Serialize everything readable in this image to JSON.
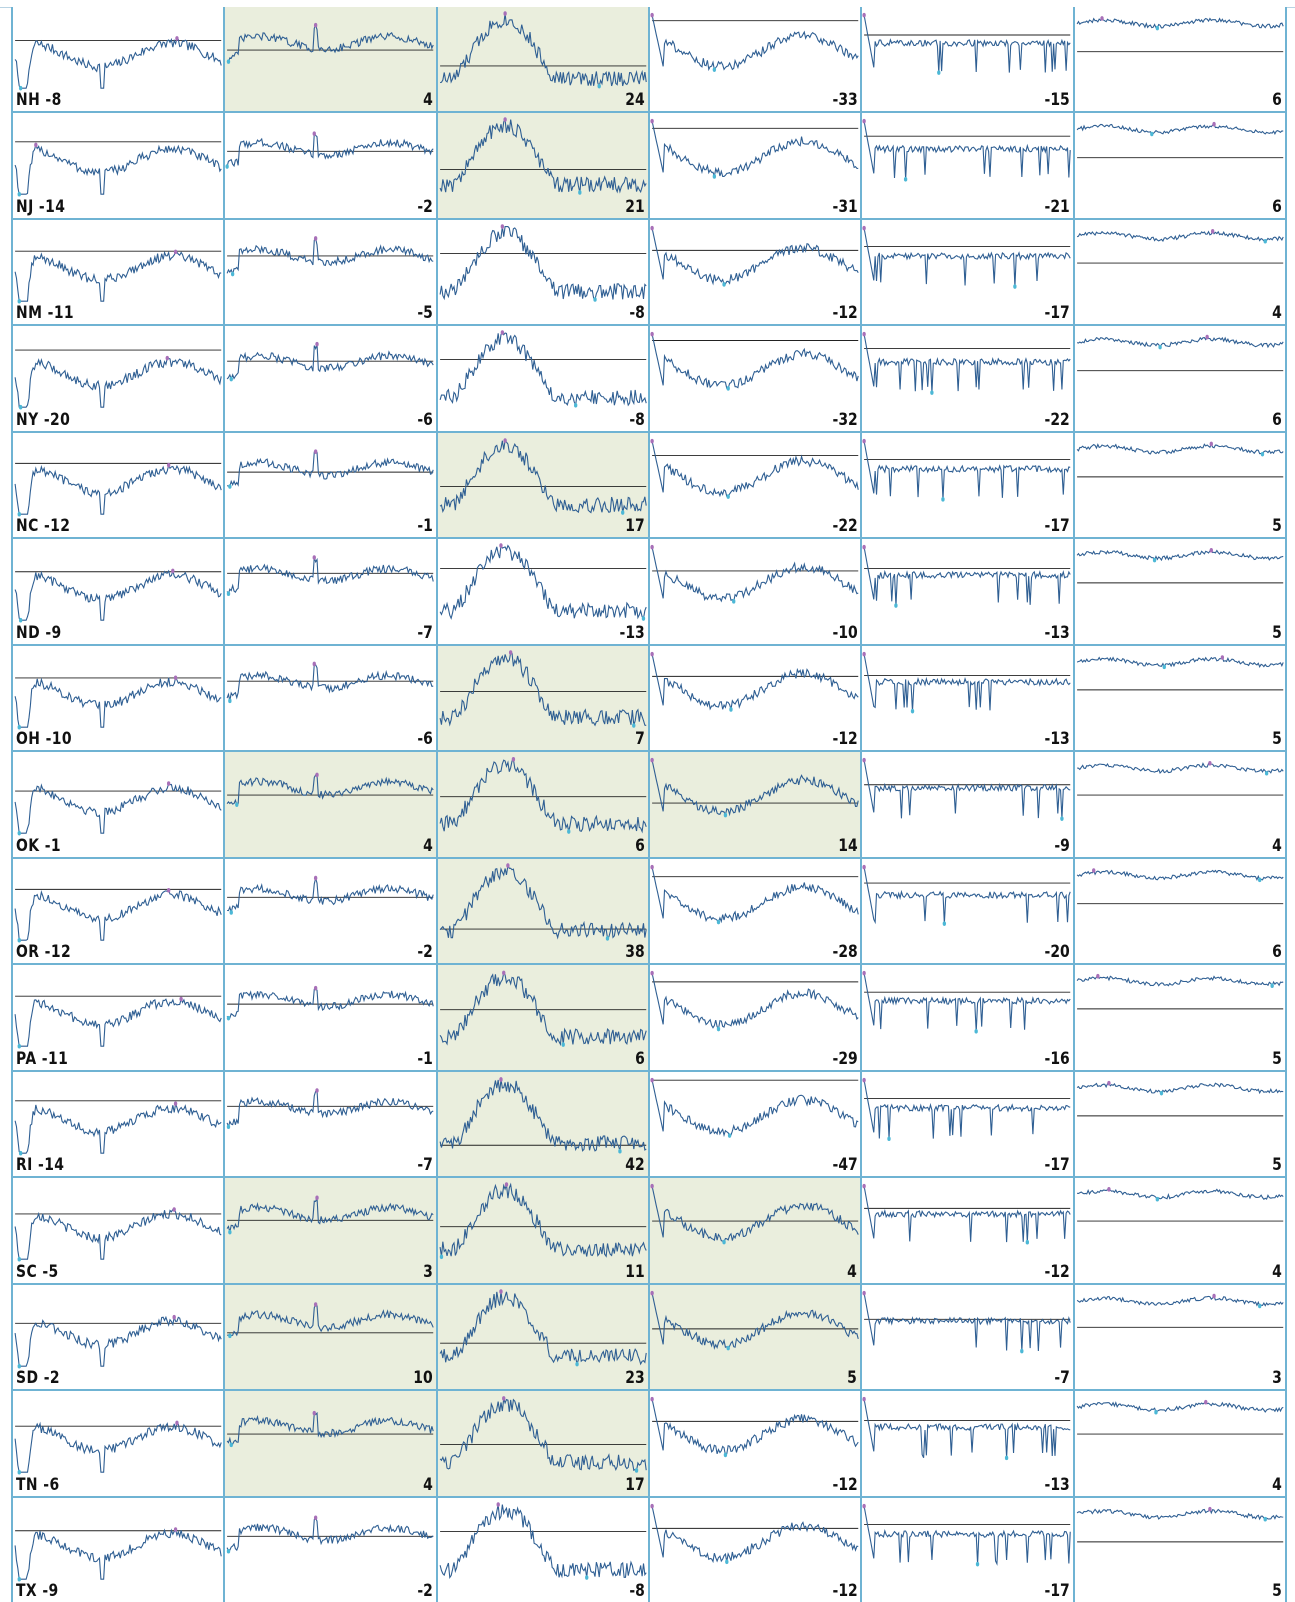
{
  "chart_data": {
    "type": "line",
    "chart_kind": "small-multiples sparkline grid",
    "columns": 6,
    "shaded_meaning": "cells with positive value",
    "colors": {
      "line": "#2f5f93",
      "baseline": "#222222",
      "max_marker": "#a870b8",
      "min_marker": "#4cb8d6",
      "shaded_bg": "#eaeedd",
      "grid": "#6fb3d3"
    },
    "rows": [
      {
        "state": "NH",
        "values": [
          -8,
          4,
          24,
          -33,
          -15,
          6
        ]
      },
      {
        "state": "NJ",
        "values": [
          -14,
          -2,
          21,
          -31,
          -21,
          6
        ]
      },
      {
        "state": "NM",
        "values": [
          -11,
          -5,
          -8,
          -12,
          -17,
          4
        ]
      },
      {
        "state": "NY",
        "values": [
          -20,
          -6,
          -8,
          -32,
          -22,
          6
        ]
      },
      {
        "state": "NC",
        "values": [
          -12,
          -1,
          17,
          -22,
          -17,
          5
        ]
      },
      {
        "state": "ND",
        "values": [
          -9,
          -7,
          -13,
          -10,
          -13,
          5
        ]
      },
      {
        "state": "OH",
        "values": [
          -10,
          -6,
          7,
          -12,
          -13,
          5
        ]
      },
      {
        "state": "OK",
        "values": [
          -1,
          4,
          6,
          14,
          -9,
          4
        ]
      },
      {
        "state": "OR",
        "values": [
          -12,
          -2,
          38,
          -28,
          -20,
          6
        ]
      },
      {
        "state": "PA",
        "values": [
          -11,
          -1,
          6,
          -29,
          -16,
          5
        ]
      },
      {
        "state": "RI",
        "values": [
          -14,
          -7,
          42,
          -47,
          -17,
          5
        ]
      },
      {
        "state": "SC",
        "values": [
          -5,
          3,
          11,
          4,
          -12,
          4
        ]
      },
      {
        "state": "SD",
        "values": [
          -2,
          10,
          23,
          5,
          -7,
          3
        ]
      },
      {
        "state": "TN",
        "values": [
          -6,
          4,
          17,
          -12,
          -13,
          4
        ]
      },
      {
        "state": "TX",
        "values": [
          -9,
          -2,
          -8,
          -12,
          -17,
          5
        ]
      }
    ]
  }
}
